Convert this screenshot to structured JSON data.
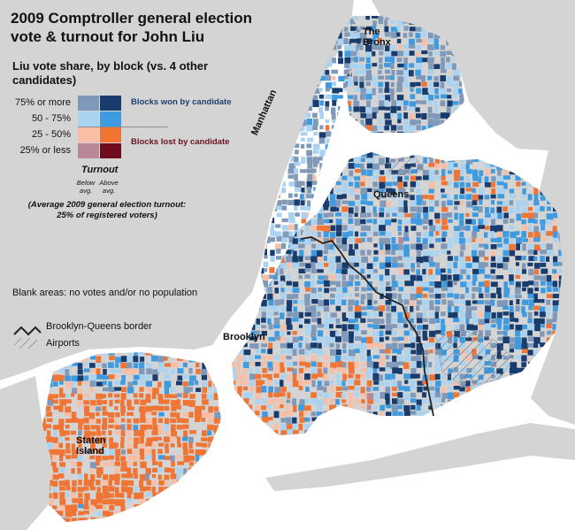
{
  "title": "2009 Comptroller general election vote & turnout for John Liu",
  "legend": {
    "subtitle": "Liu vote share, by block (vs. 4 other candidates)",
    "rows": [
      {
        "label": "75% or more",
        "below_color": "#8099b9",
        "above_color": "#173c6d"
      },
      {
        "label": "50 - 75%",
        "below_color": "#a9d3f0",
        "above_color": "#3f9be0"
      },
      {
        "label": "25 - 50%",
        "below_color": "#f8bea6",
        "above_color": "#f07434"
      },
      {
        "label": "25% or less",
        "below_color": "#b98998",
        "above_color": "#6e0b1f"
      }
    ],
    "won_label": "Blocks won by candidate",
    "lost_label": "Blocks lost by candidate",
    "turnout_label": "Turnout",
    "below_label": "Below avg.",
    "above_label": "Above avg.",
    "average_note": "(Average 2009 general election turnout: 25% of registered voters)",
    "blank_note": "Blank areas: no votes and/or no population",
    "border_label": "Brooklyn-Queens border",
    "airports_label": "Airports"
  },
  "boroughs": {
    "bronx": "The Bronx",
    "manhattan": "Manhattan",
    "queens": "Queens",
    "brooklyn": "Brooklyn",
    "staten_island": "Staten Island"
  },
  "colors": {
    "water": "#ffffff",
    "land": "#d4d4d4",
    "border": "#222222"
  }
}
